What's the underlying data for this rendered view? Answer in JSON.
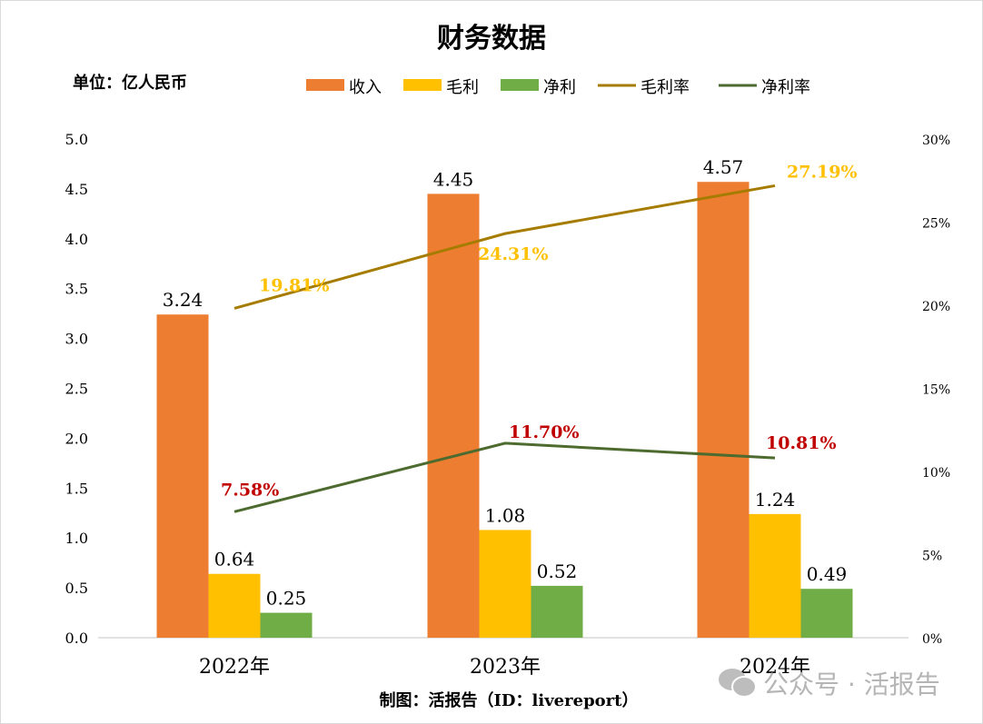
{
  "chart_data": {
    "type": "bar+line",
    "title": "财务数据",
    "unit_label": "单位：亿人民币",
    "source_label": "制图：活报告（ID：livereport）",
    "categories": [
      "2022年",
      "2023年",
      "2024年"
    ],
    "series": [
      {
        "name": "收入",
        "type": "bar",
        "axis": "left",
        "color": "#ED7D31",
        "values": [
          3.24,
          4.45,
          4.57
        ],
        "labels": [
          "3.24",
          "4.45",
          "4.57"
        ]
      },
      {
        "name": "毛利",
        "type": "bar",
        "axis": "left",
        "color": "#FFC000",
        "values": [
          0.64,
          1.08,
          1.24
        ],
        "labels": [
          "0.64",
          "1.08",
          "1.24"
        ]
      },
      {
        "name": "净利",
        "type": "bar",
        "axis": "left",
        "color": "#70AD47",
        "values": [
          0.25,
          0.52,
          0.49
        ],
        "labels": [
          "0.25",
          "0.52",
          "0.49"
        ]
      },
      {
        "name": "毛利率",
        "type": "line",
        "axis": "right",
        "color": "#A67C00",
        "label_color": "#FFC000",
        "values": [
          19.81,
          24.31,
          27.19
        ],
        "labels": [
          "19.81%",
          "24.31%",
          "27.19%"
        ]
      },
      {
        "name": "净利率",
        "type": "line",
        "axis": "right",
        "color": "#4E6B2F",
        "label_color": "#C00000",
        "values": [
          7.58,
          11.7,
          10.81
        ],
        "labels": [
          "7.58%",
          "11.70%",
          "10.81%"
        ]
      }
    ],
    "y_left": {
      "range": [
        0,
        5
      ],
      "ticks": [
        "0.0",
        "0.5",
        "1.0",
        "1.5",
        "2.0",
        "2.5",
        "3.0",
        "3.5",
        "4.0",
        "4.5",
        "5.0"
      ]
    },
    "y_right": {
      "range": [
        0,
        30
      ],
      "ticks": [
        "0%",
        "5%",
        "10%",
        "15%",
        "20%",
        "25%",
        "30%"
      ]
    },
    "grid": false,
    "legend_position": "top"
  },
  "watermark": {
    "text": "公众号 · 活报告",
    "icon": "wechat-icon"
  }
}
